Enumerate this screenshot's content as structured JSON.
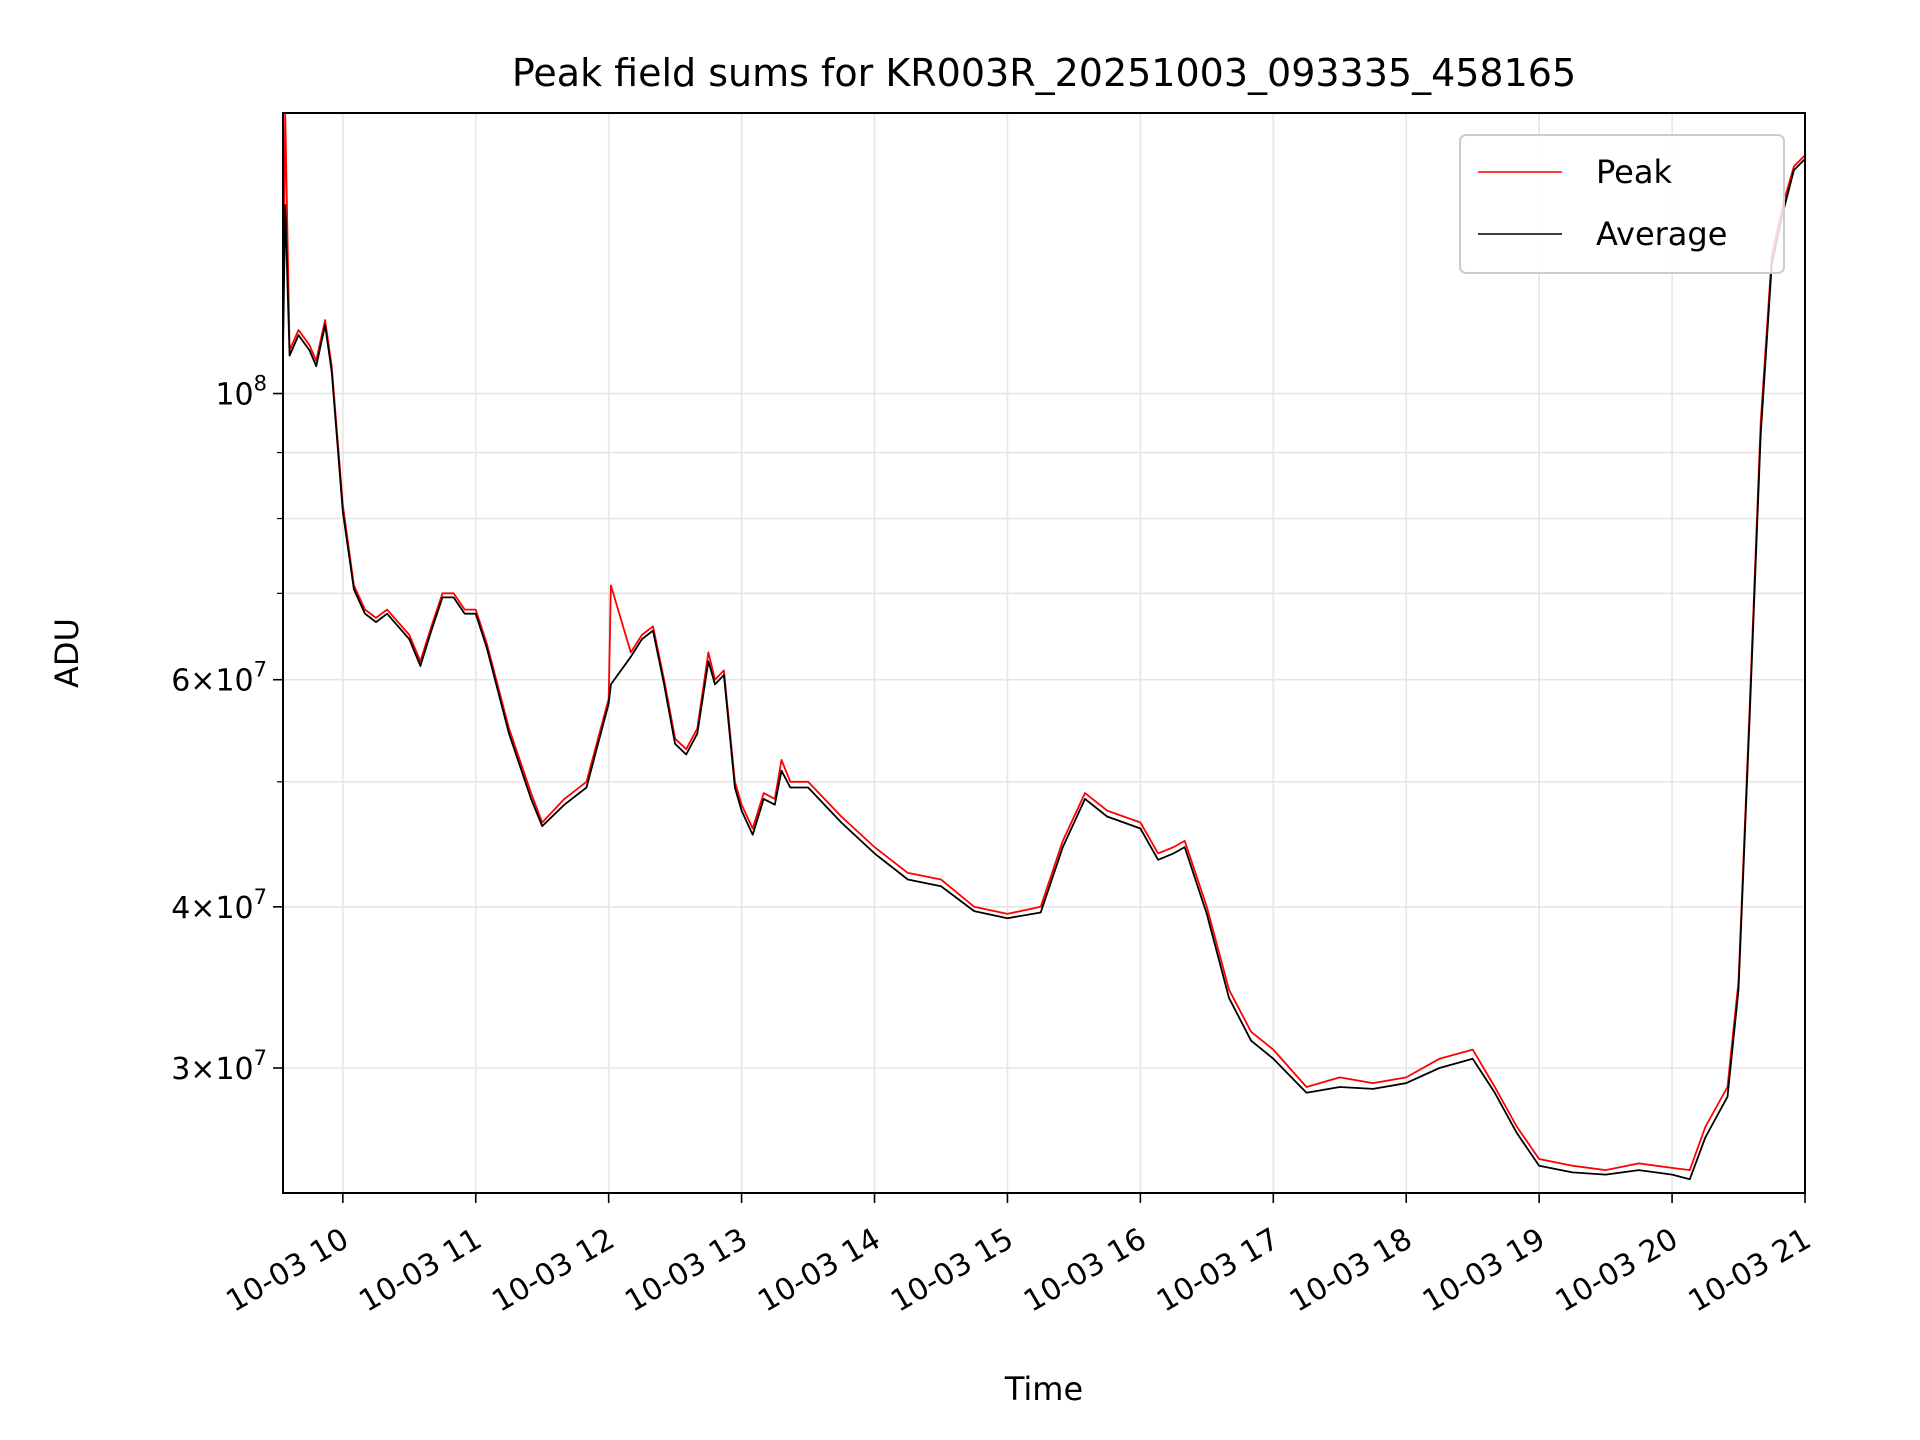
{
  "chart_data": {
    "type": "line",
    "title": "Peak field sums for KR003R_20251003_093335_458165",
    "xlabel": "Time",
    "ylabel": "ADU",
    "yscale": "log",
    "ylim": [
      24000000,
      165000000
    ],
    "xlim": [
      "2025-10-03 09:33",
      "2025-10-03 21:00"
    ],
    "grid": true,
    "legend_position": "top-right",
    "x_ticks": [
      {
        "t": "2025-10-03 10:00",
        "label": "10-03 10"
      },
      {
        "t": "2025-10-03 11:00",
        "label": "10-03 11"
      },
      {
        "t": "2025-10-03 12:00",
        "label": "10-03 12"
      },
      {
        "t": "2025-10-03 13:00",
        "label": "10-03 13"
      },
      {
        "t": "2025-10-03 14:00",
        "label": "10-03 14"
      },
      {
        "t": "2025-10-03 15:00",
        "label": "10-03 15"
      },
      {
        "t": "2025-10-03 16:00",
        "label": "10-03 16"
      },
      {
        "t": "2025-10-03 17:00",
        "label": "10-03 17"
      },
      {
        "t": "2025-10-03 18:00",
        "label": "10-03 18"
      },
      {
        "t": "2025-10-03 19:00",
        "label": "10-03 19"
      },
      {
        "t": "2025-10-03 20:00",
        "label": "10-03 20"
      },
      {
        "t": "2025-10-03 21:00",
        "label": "10-03 21"
      }
    ],
    "y_major_ticks": [
      {
        "value": 100000000,
        "base": "10",
        "exp": "8"
      },
      {
        "value": 60000000,
        "mant": "6",
        "base": "10",
        "exp": "7"
      },
      {
        "value": 40000000,
        "mant": "4",
        "base": "10",
        "exp": "7"
      },
      {
        "value": 30000000,
        "mant": "3",
        "base": "10",
        "exp": "7"
      }
    ],
    "y_minor_gridlines": [
      70000000,
      80000000,
      90000000,
      50000000
    ],
    "series": [
      {
        "name": "Peak",
        "color": "#ff0000",
        "x": [
          "2025-10-03 09:33",
          "2025-10-03 09:34",
          "2025-10-03 09:36",
          "2025-10-03 09:40",
          "2025-10-03 09:45",
          "2025-10-03 09:48",
          "2025-10-03 09:50",
          "2025-10-03 09:52",
          "2025-10-03 09:55",
          "2025-10-03 10:00",
          "2025-10-03 10:05",
          "2025-10-03 10:10",
          "2025-10-03 10:15",
          "2025-10-03 10:20",
          "2025-10-03 10:30",
          "2025-10-03 10:35",
          "2025-10-03 10:40",
          "2025-10-03 10:45",
          "2025-10-03 10:50",
          "2025-10-03 10:55",
          "2025-10-03 11:00",
          "2025-10-03 11:05",
          "2025-10-03 11:15",
          "2025-10-03 11:25",
          "2025-10-03 11:30",
          "2025-10-03 11:40",
          "2025-10-03 11:50",
          "2025-10-03 12:00",
          "2025-10-03 12:01",
          "2025-10-03 12:10",
          "2025-10-03 12:15",
          "2025-10-03 12:20",
          "2025-10-03 12:25",
          "2025-10-03 12:30",
          "2025-10-03 12:35",
          "2025-10-03 12:40",
          "2025-10-03 12:45",
          "2025-10-03 12:48",
          "2025-10-03 12:52",
          "2025-10-03 12:57",
          "2025-10-03 13:00",
          "2025-10-03 13:05",
          "2025-10-03 13:10",
          "2025-10-03 13:15",
          "2025-10-03 13:18",
          "2025-10-03 13:22",
          "2025-10-03 13:30",
          "2025-10-03 13:45",
          "2025-10-03 14:00",
          "2025-10-03 14:15",
          "2025-10-03 14:30",
          "2025-10-03 14:45",
          "2025-10-03 15:00",
          "2025-10-03 15:15",
          "2025-10-03 15:25",
          "2025-10-03 15:35",
          "2025-10-03 15:45",
          "2025-10-03 16:00",
          "2025-10-03 16:08",
          "2025-10-03 16:15",
          "2025-10-03 16:20",
          "2025-10-03 16:30",
          "2025-10-03 16:40",
          "2025-10-03 16:50",
          "2025-10-03 17:00",
          "2025-10-03 17:15",
          "2025-10-03 17:30",
          "2025-10-03 17:45",
          "2025-10-03 18:00",
          "2025-10-03 18:15",
          "2025-10-03 18:30",
          "2025-10-03 18:40",
          "2025-10-03 18:50",
          "2025-10-03 19:00",
          "2025-10-03 19:15",
          "2025-10-03 19:30",
          "2025-10-03 19:45",
          "2025-10-03 20:00",
          "2025-10-03 20:08",
          "2025-10-03 20:15",
          "2025-10-03 20:25",
          "2025-10-03 20:30",
          "2025-10-03 20:35",
          "2025-10-03 20:40",
          "2025-10-03 20:45",
          "2025-10-03 20:50",
          "2025-10-03 20:55",
          "2025-10-03 21:00"
        ],
        "y": [
          110000000,
          165000000,
          108000000,
          112000000,
          109000000,
          106000000,
          110000000,
          114000000,
          105000000,
          82000000,
          71000000,
          68000000,
          67000000,
          68000000,
          65000000,
          62000000,
          66000000,
          70000000,
          70000000,
          68000000,
          68000000,
          64000000,
          55000000,
          49000000,
          46500000,
          48500000,
          50000000,
          58000000,
          71000000,
          63000000,
          65000000,
          66000000,
          60000000,
          54000000,
          53000000,
          55000000,
          63000000,
          60000000,
          61000000,
          50000000,
          48000000,
          46000000,
          49000000,
          48500000,
          52000000,
          50000000,
          50000000,
          47000000,
          44500000,
          42500000,
          42000000,
          40000000,
          39500000,
          40000000,
          45000000,
          49000000,
          47500000,
          46500000,
          44000000,
          44500000,
          45000000,
          40000000,
          34500000,
          32000000,
          31000000,
          29000000,
          29500000,
          29200000,
          29500000,
          30500000,
          31000000,
          29000000,
          27000000,
          25500000,
          25200000,
          25000000,
          25300000,
          25100000,
          25000000,
          27000000,
          29000000,
          35000000,
          57000000,
          95000000,
          128000000,
          140000000,
          150000000,
          153000000
        ]
      },
      {
        "name": "Average",
        "color": "#000000",
        "x": [
          "2025-10-03 09:33",
          "2025-10-03 09:34",
          "2025-10-03 09:36",
          "2025-10-03 09:40",
          "2025-10-03 09:45",
          "2025-10-03 09:48",
          "2025-10-03 09:50",
          "2025-10-03 09:52",
          "2025-10-03 09:55",
          "2025-10-03 10:00",
          "2025-10-03 10:05",
          "2025-10-03 10:10",
          "2025-10-03 10:15",
          "2025-10-03 10:20",
          "2025-10-03 10:30",
          "2025-10-03 10:35",
          "2025-10-03 10:40",
          "2025-10-03 10:45",
          "2025-10-03 10:50",
          "2025-10-03 10:55",
          "2025-10-03 11:00",
          "2025-10-03 11:05",
          "2025-10-03 11:15",
          "2025-10-03 11:25",
          "2025-10-03 11:30",
          "2025-10-03 11:40",
          "2025-10-03 11:50",
          "2025-10-03 12:00",
          "2025-10-03 12:01",
          "2025-10-03 12:10",
          "2025-10-03 12:15",
          "2025-10-03 12:20",
          "2025-10-03 12:25",
          "2025-10-03 12:30",
          "2025-10-03 12:35",
          "2025-10-03 12:40",
          "2025-10-03 12:45",
          "2025-10-03 12:48",
          "2025-10-03 12:52",
          "2025-10-03 12:57",
          "2025-10-03 13:00",
          "2025-10-03 13:05",
          "2025-10-03 13:10",
          "2025-10-03 13:15",
          "2025-10-03 13:18",
          "2025-10-03 13:22",
          "2025-10-03 13:30",
          "2025-10-03 13:45",
          "2025-10-03 14:00",
          "2025-10-03 14:15",
          "2025-10-03 14:30",
          "2025-10-03 14:45",
          "2025-10-03 15:00",
          "2025-10-03 15:15",
          "2025-10-03 15:25",
          "2025-10-03 15:35",
          "2025-10-03 15:45",
          "2025-10-03 16:00",
          "2025-10-03 16:08",
          "2025-10-03 16:15",
          "2025-10-03 16:20",
          "2025-10-03 16:30",
          "2025-10-03 16:40",
          "2025-10-03 16:50",
          "2025-10-03 17:00",
          "2025-10-03 17:15",
          "2025-10-03 17:30",
          "2025-10-03 17:45",
          "2025-10-03 18:00",
          "2025-10-03 18:15",
          "2025-10-03 18:30",
          "2025-10-03 18:40",
          "2025-10-03 18:50",
          "2025-10-03 19:00",
          "2025-10-03 19:15",
          "2025-10-03 19:30",
          "2025-10-03 19:45",
          "2025-10-03 20:00",
          "2025-10-03 20:08",
          "2025-10-03 20:15",
          "2025-10-03 20:25",
          "2025-10-03 20:30",
          "2025-10-03 20:35",
          "2025-10-03 20:40",
          "2025-10-03 20:45",
          "2025-10-03 20:50",
          "2025-10-03 20:55",
          "2025-10-03 21:00"
        ],
        "y": [
          108000000,
          140000000,
          107000000,
          111000000,
          108000000,
          105000000,
          109000000,
          113000000,
          104000000,
          81000000,
          70500000,
          67500000,
          66500000,
          67500000,
          64500000,
          61500000,
          65500000,
          69500000,
          69500000,
          67500000,
          67500000,
          63500000,
          54500000,
          48500000,
          46200000,
          48000000,
          49500000,
          57500000,
          59500000,
          62500000,
          64500000,
          65500000,
          59500000,
          53500000,
          52500000,
          54500000,
          62000000,
          59500000,
          60500000,
          49500000,
          47500000,
          45500000,
          48500000,
          48000000,
          51000000,
          49500000,
          49500000,
          46500000,
          44000000,
          42000000,
          41500000,
          39700000,
          39200000,
          39600000,
          44500000,
          48500000,
          47000000,
          46000000,
          43500000,
          44000000,
          44500000,
          39500000,
          34000000,
          31500000,
          30500000,
          28700000,
          29000000,
          28900000,
          29200000,
          30000000,
          30500000,
          28700000,
          26700000,
          25200000,
          24900000,
          24800000,
          25000000,
          24800000,
          24600000,
          26500000,
          28500000,
          34500000,
          56000000,
          93000000,
          126000000,
          138000000,
          149000000,
          152000000
        ]
      }
    ]
  }
}
